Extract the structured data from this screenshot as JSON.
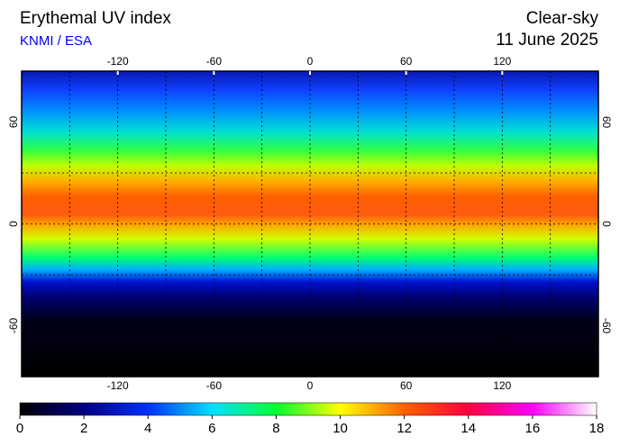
{
  "header": {
    "title": "Erythemal UV index",
    "source": "KNMI / ESA",
    "mode": "Clear-sky",
    "date": "11 June 2025"
  },
  "chart_data": {
    "type": "map",
    "xlim": [
      -180,
      180
    ],
    "ylim": [
      -90,
      90
    ],
    "xticks": [
      -120,
      -60,
      0,
      60,
      120
    ],
    "yticks": [
      -60,
      0,
      60
    ],
    "xgrid": [
      -150,
      -120,
      -90,
      -60,
      -30,
      0,
      30,
      60,
      90,
      120,
      150
    ],
    "ygrid": [
      -30,
      0,
      30
    ],
    "colorbar": {
      "lim": [
        0,
        18
      ],
      "ticks": [
        0,
        2,
        4,
        6,
        8,
        10,
        12,
        14,
        16,
        18
      ],
      "colors": [
        "#000000",
        "#000080",
        "#0030ff",
        "#00e0ff",
        "#00ff30",
        "#ffff00",
        "#ff6000",
        "#ff0040",
        "#ff00ff",
        "#ffffff"
      ]
    }
  }
}
